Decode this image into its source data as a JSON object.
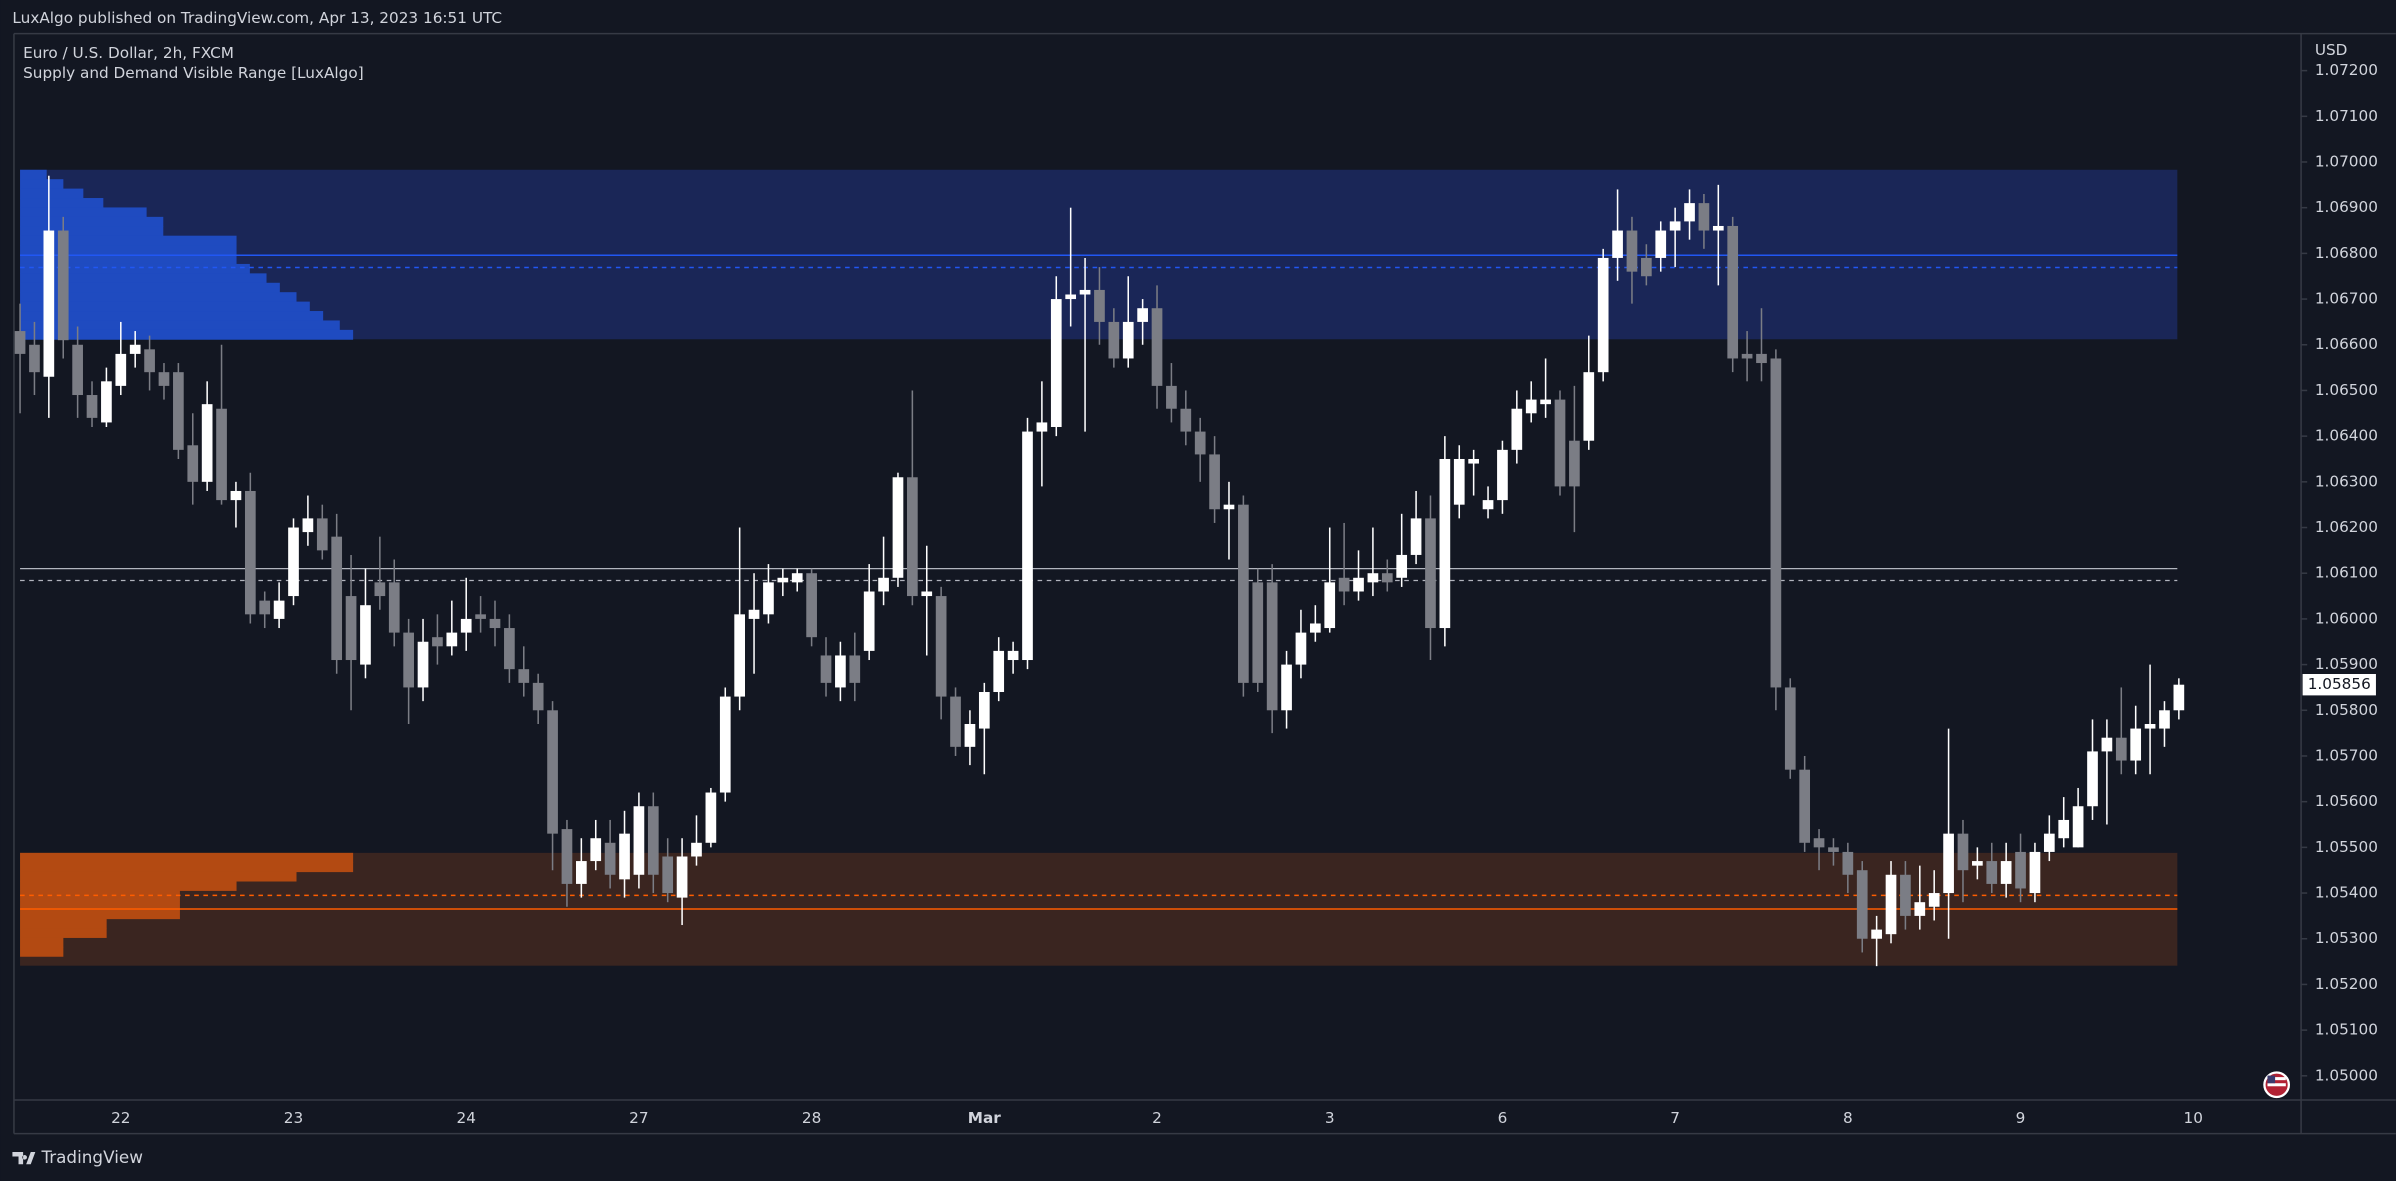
{
  "chart_data": {
    "type": "candlestick",
    "header": "LuxAlgo published on TradingView.com, Apr 13, 2023 16:51 UTC",
    "title": "Euro / U.S. Dollar, 2h, FXCM",
    "subtitle": "Supply and Demand Visible Range [LuxAlgo]",
    "axis_unit": "USD",
    "footer": "TradingView",
    "up_color": "#ffffff",
    "down_color": "#7b7d85",
    "grid": false,
    "ylim": [
      1.04947,
      1.07281
    ],
    "yticks": [
      {
        "value": 1.05,
        "label": "1.05000"
      },
      {
        "value": 1.051,
        "label": "1.05100"
      },
      {
        "value": 1.052,
        "label": "1.05200"
      },
      {
        "value": 1.053,
        "label": "1.05300"
      },
      {
        "value": 1.054,
        "label": "1.05400"
      },
      {
        "value": 1.055,
        "label": "1.05500"
      },
      {
        "value": 1.056,
        "label": "1.05600"
      },
      {
        "value": 1.057,
        "label": "1.05700"
      },
      {
        "value": 1.058,
        "label": "1.05800"
      },
      {
        "value": 1.059,
        "label": "1.05900"
      },
      {
        "value": 1.06,
        "label": "1.06000"
      },
      {
        "value": 1.061,
        "label": "1.06100"
      },
      {
        "value": 1.062,
        "label": "1.06200"
      },
      {
        "value": 1.063,
        "label": "1.06300"
      },
      {
        "value": 1.064,
        "label": "1.06400"
      },
      {
        "value": 1.065,
        "label": "1.06500"
      },
      {
        "value": 1.066,
        "label": "1.06600"
      },
      {
        "value": 1.067,
        "label": "1.06700"
      },
      {
        "value": 1.068,
        "label": "1.06800"
      },
      {
        "value": 1.069,
        "label": "1.06900"
      },
      {
        "value": 1.07,
        "label": "1.07000"
      },
      {
        "value": 1.071,
        "label": "1.07100"
      },
      {
        "value": 1.072,
        "label": "1.07200"
      }
    ],
    "last_price_label": "1.05856",
    "categories": [
      null,
      null,
      null,
      null,
      null,
      null,
      null,
      "22",
      null,
      null,
      null,
      null,
      null,
      null,
      null,
      null,
      null,
      null,
      null,
      "23",
      null,
      null,
      null,
      null,
      null,
      null,
      null,
      null,
      null,
      null,
      null,
      "24",
      null,
      null,
      null,
      null,
      null,
      null,
      null,
      null,
      null,
      null,
      null,
      "27",
      null,
      null,
      null,
      null,
      null,
      null,
      null,
      null,
      null,
      null,
      null,
      "28",
      null,
      null,
      null,
      null,
      null,
      null,
      null,
      null,
      null,
      null,
      null,
      "Mar",
      null,
      null,
      null,
      null,
      null,
      null,
      null,
      null,
      null,
      null,
      null,
      "2",
      null,
      null,
      null,
      null,
      null,
      null,
      null,
      null,
      null,
      null,
      null,
      "3",
      null,
      null,
      null,
      null,
      null,
      null,
      null,
      null,
      null,
      null,
      null,
      "6",
      null,
      null,
      null,
      null,
      null,
      null,
      null,
      null,
      null,
      null,
      null,
      "7",
      null,
      null,
      null,
      null,
      null,
      null,
      null,
      null,
      null,
      null,
      null,
      "8",
      null,
      null,
      null,
      null,
      null,
      null,
      null,
      null,
      null,
      null,
      null,
      "9",
      null,
      null,
      null,
      null,
      null,
      null,
      null,
      null,
      null,
      null,
      null,
      "10"
    ],
    "ohlc": [
      [
        1.0663,
        1.0669,
        1.0645,
        1.0658
      ],
      [
        1.066,
        1.0665,
        1.0649,
        1.0654
      ],
      [
        1.0653,
        1.0697,
        1.0644,
        1.0685
      ],
      [
        1.0685,
        1.0688,
        1.0657,
        1.0661
      ],
      [
        1.066,
        1.0664,
        1.0644,
        1.0649
      ],
      [
        1.0649,
        1.0652,
        1.0642,
        1.0644
      ],
      [
        1.0643,
        1.0655,
        1.0642,
        1.0652
      ],
      [
        1.0651,
        1.0665,
        1.0649,
        1.0658
      ],
      [
        1.0658,
        1.0663,
        1.0655,
        1.066
      ],
      [
        1.0659,
        1.0662,
        1.065,
        1.0654
      ],
      [
        1.0654,
        1.0656,
        1.0648,
        1.0651
      ],
      [
        1.0654,
        1.0656,
        1.0635,
        1.0637
      ],
      [
        1.0638,
        1.0645,
        1.0625,
        1.063
      ],
      [
        1.063,
        1.0652,
        1.0628,
        1.0647
      ],
      [
        1.0646,
        1.066,
        1.0625,
        1.0626
      ],
      [
        1.0626,
        1.063,
        1.062,
        1.0628
      ],
      [
        1.0628,
        1.0632,
        1.0599,
        1.0601
      ],
      [
        1.0604,
        1.0606,
        1.0598,
        1.0601
      ],
      [
        1.06,
        1.0608,
        1.0598,
        1.0604
      ],
      [
        1.0605,
        1.0622,
        1.0603,
        1.062
      ],
      [
        1.0619,
        1.0627,
        1.0616,
        1.0622
      ],
      [
        1.0622,
        1.0625,
        1.0613,
        1.0615
      ],
      [
        1.0618,
        1.0623,
        1.0588,
        1.0591
      ],
      [
        1.0605,
        1.0614,
        1.058,
        1.0591
      ],
      [
        1.059,
        1.0611,
        1.0587,
        1.0603
      ],
      [
        1.0608,
        1.0618,
        1.0602,
        1.0605
      ],
      [
        1.0608,
        1.0613,
        1.0594,
        1.0597
      ],
      [
        1.0597,
        1.06,
        1.0577,
        1.0585
      ],
      [
        1.0585,
        1.06,
        1.0582,
        1.0595
      ],
      [
        1.0596,
        1.0601,
        1.059,
        1.0594
      ],
      [
        1.0594,
        1.0604,
        1.0592,
        1.0597
      ],
      [
        1.0597,
        1.0609,
        1.0593,
        1.06
      ],
      [
        1.0601,
        1.0605,
        1.0597,
        1.06
      ],
      [
        1.06,
        1.0604,
        1.0594,
        1.0598
      ],
      [
        1.0598,
        1.0601,
        1.0586,
        1.0589
      ],
      [
        1.0589,
        1.0594,
        1.0583,
        1.0586
      ],
      [
        1.0586,
        1.0588,
        1.0577,
        1.058
      ],
      [
        1.058,
        1.0582,
        1.0545,
        1.0553
      ],
      [
        1.0554,
        1.0556,
        1.0537,
        1.0542
      ],
      [
        1.0542,
        1.0552,
        1.0539,
        1.0547
      ],
      [
        1.0547,
        1.0556,
        1.0545,
        1.0552
      ],
      [
        1.0551,
        1.0556,
        1.0541,
        1.0544
      ],
      [
        1.0543,
        1.0558,
        1.0539,
        1.0553
      ],
      [
        1.0544,
        1.0562,
        1.0541,
        1.0559
      ],
      [
        1.0559,
        1.0562,
        1.054,
        1.0544
      ],
      [
        1.0548,
        1.0552,
        1.0538,
        1.054
      ],
      [
        1.0539,
        1.0552,
        1.0533,
        1.0548
      ],
      [
        1.0548,
        1.0557,
        1.0546,
        1.0551
      ],
      [
        1.0551,
        1.0563,
        1.055,
        1.0562
      ],
      [
        1.0562,
        1.0585,
        1.056,
        1.0583
      ],
      [
        1.0583,
        1.062,
        1.058,
        1.0601
      ],
      [
        1.06,
        1.061,
        1.0588,
        1.0602
      ],
      [
        1.0601,
        1.0612,
        1.0599,
        1.0608
      ],
      [
        1.0608,
        1.0611,
        1.0605,
        1.0609
      ],
      [
        1.0608,
        1.0611,
        1.0606,
        1.061
      ],
      [
        1.061,
        1.0611,
        1.0594,
        1.0596
      ],
      [
        1.0592,
        1.0596,
        1.0583,
        1.0586
      ],
      [
        1.0585,
        1.0595,
        1.0582,
        1.0592
      ],
      [
        1.0592,
        1.0597,
        1.0582,
        1.0586
      ],
      [
        1.0593,
        1.0612,
        1.0591,
        1.0606
      ],
      [
        1.0606,
        1.0618,
        1.0603,
        1.0609
      ],
      [
        1.0609,
        1.0632,
        1.0607,
        1.0631
      ],
      [
        1.0631,
        1.065,
        1.0603,
        1.0605
      ],
      [
        1.0605,
        1.0616,
        1.0592,
        1.0606
      ],
      [
        1.0605,
        1.0607,
        1.0578,
        1.0583
      ],
      [
        1.0583,
        1.0585,
        1.057,
        1.0572
      ],
      [
        1.0572,
        1.058,
        1.0568,
        1.0577
      ],
      [
        1.0576,
        1.0586,
        1.0566,
        1.0584
      ],
      [
        1.0584,
        1.0596,
        1.0582,
        1.0593
      ],
      [
        1.0591,
        1.0595,
        1.0588,
        1.0593
      ],
      [
        1.0591,
        1.0644,
        1.0589,
        1.0641
      ],
      [
        1.0641,
        1.0652,
        1.0629,
        1.0643
      ],
      [
        1.0642,
        1.0675,
        1.064,
        1.067
      ],
      [
        1.067,
        1.069,
        1.0664,
        1.0671
      ],
      [
        1.0671,
        1.0679,
        1.0641,
        1.0672
      ],
      [
        1.0672,
        1.0677,
        1.066,
        1.0665
      ],
      [
        1.0665,
        1.0668,
        1.0655,
        1.0657
      ],
      [
        1.0657,
        1.0675,
        1.0655,
        1.0665
      ],
      [
        1.0665,
        1.067,
        1.066,
        1.0668
      ],
      [
        1.0668,
        1.0673,
        1.0646,
        1.0651
      ],
      [
        1.0651,
        1.0656,
        1.0643,
        1.0646
      ],
      [
        1.0646,
        1.065,
        1.0638,
        1.0641
      ],
      [
        1.0641,
        1.0644,
        1.063,
        1.0636
      ],
      [
        1.0636,
        1.064,
        1.0621,
        1.0624
      ],
      [
        1.0624,
        1.063,
        1.0613,
        1.0625
      ],
      [
        1.0625,
        1.0627,
        1.0583,
        1.0586
      ],
      [
        1.0608,
        1.0611,
        1.0584,
        1.0586
      ],
      [
        1.0608,
        1.0612,
        1.0575,
        1.058
      ],
      [
        1.058,
        1.0593,
        1.0576,
        1.059
      ],
      [
        1.059,
        1.0602,
        1.0587,
        1.0597
      ],
      [
        1.0597,
        1.0603,
        1.0595,
        1.0599
      ],
      [
        1.0598,
        1.062,
        1.0597,
        1.0608
      ],
      [
        1.0609,
        1.0621,
        1.0603,
        1.0606
      ],
      [
        1.0606,
        1.0615,
        1.0604,
        1.0609
      ],
      [
        1.0608,
        1.062,
        1.0605,
        1.061
      ],
      [
        1.061,
        1.0613,
        1.0606,
        1.0608
      ],
      [
        1.0609,
        1.0623,
        1.0607,
        1.0614
      ],
      [
        1.0614,
        1.0628,
        1.0612,
        1.0622
      ],
      [
        1.0622,
        1.0627,
        1.0591,
        1.0598
      ],
      [
        1.0598,
        1.064,
        1.0594,
        1.0635
      ],
      [
        1.0625,
        1.0638,
        1.0622,
        1.0635
      ],
      [
        1.0634,
        1.0637,
        1.0627,
        1.0635
      ],
      [
        1.0624,
        1.0629,
        1.0622,
        1.0626
      ],
      [
        1.0626,
        1.0639,
        1.0623,
        1.0637
      ],
      [
        1.0637,
        1.065,
        1.0634,
        1.0646
      ],
      [
        1.0645,
        1.0652,
        1.0643,
        1.0648
      ],
      [
        1.0647,
        1.0657,
        1.0644,
        1.0648
      ],
      [
        1.0648,
        1.065,
        1.0627,
        1.0629
      ],
      [
        1.0639,
        1.0651,
        1.0619,
        1.0629
      ],
      [
        1.0639,
        1.0662,
        1.0637,
        1.0654
      ],
      [
        1.0654,
        1.0681,
        1.0652,
        1.0679
      ],
      [
        1.0679,
        1.0694,
        1.0674,
        1.0685
      ],
      [
        1.0685,
        1.0688,
        1.0669,
        1.0676
      ],
      [
        1.0679,
        1.0682,
        1.0673,
        1.0675
      ],
      [
        1.0679,
        1.0687,
        1.0676,
        1.0685
      ],
      [
        1.0685,
        1.069,
        1.0677,
        1.0687
      ],
      [
        1.0687,
        1.0694,
        1.0683,
        1.0691
      ],
      [
        1.0691,
        1.0693,
        1.0681,
        1.0685
      ],
      [
        1.0685,
        1.0695,
        1.0673,
        1.0686
      ],
      [
        1.0686,
        1.0688,
        1.0654,
        1.0657
      ],
      [
        1.0658,
        1.0663,
        1.0652,
        1.0657
      ],
      [
        1.0658,
        1.0668,
        1.0652,
        1.0656
      ],
      [
        1.0657,
        1.0659,
        1.058,
        1.0585
      ],
      [
        1.0585,
        1.0587,
        1.0565,
        1.0567
      ],
      [
        1.0567,
        1.057,
        1.0549,
        1.0551
      ],
      [
        1.0552,
        1.0554,
        1.0545,
        1.055
      ],
      [
        1.055,
        1.0552,
        1.0546,
        1.0549
      ],
      [
        1.0549,
        1.0551,
        1.054,
        1.0544
      ],
      [
        1.0545,
        1.0547,
        1.0527,
        1.053
      ],
      [
        1.053,
        1.0535,
        1.0524,
        1.0532
      ],
      [
        1.0531,
        1.0547,
        1.0529,
        1.0544
      ],
      [
        1.0544,
        1.0547,
        1.0532,
        1.0535
      ],
      [
        1.0535,
        1.0546,
        1.0532,
        1.0538
      ],
      [
        1.0537,
        1.0545,
        1.0534,
        1.054
      ],
      [
        1.054,
        1.0576,
        1.053,
        1.0553
      ],
      [
        1.0553,
        1.0556,
        1.0538,
        1.0545
      ],
      [
        1.0546,
        1.055,
        1.0543,
        1.0547
      ],
      [
        1.0547,
        1.0551,
        1.054,
        1.0542
      ],
      [
        1.0542,
        1.0551,
        1.0539,
        1.0547
      ],
      [
        1.0549,
        1.0553,
        1.0538,
        1.0541
      ],
      [
        1.054,
        1.0551,
        1.0538,
        1.0549
      ],
      [
        1.0549,
        1.0557,
        1.0547,
        1.0553
      ],
      [
        1.0552,
        1.0561,
        1.055,
        1.0556
      ],
      [
        1.055,
        1.0563,
        1.055,
        1.0559
      ],
      [
        1.0559,
        1.0578,
        1.0556,
        1.0571
      ],
      [
        1.0571,
        1.0578,
        1.0555,
        1.0574
      ],
      [
        1.0574,
        1.0585,
        1.0566,
        1.0569
      ],
      [
        1.0569,
        1.0581,
        1.0566,
        1.0576
      ],
      [
        1.0576,
        1.059,
        1.0566,
        1.0577
      ],
      [
        1.0576,
        1.0582,
        1.0572,
        1.058
      ],
      [
        1.058,
        1.0587,
        1.0578,
        1.05856
      ],
      null
    ],
    "supply_zone": {
      "top": 1.06983,
      "bottom": 1.06612,
      "average": 1.06796,
      "weighted_average": 1.06769,
      "color": "#2157f3",
      "profile_color": "#1f4bc0",
      "fill": "#1a2657",
      "profile": [
        8,
        13,
        19,
        25,
        38,
        43,
        43,
        65,
        65,
        65,
        69,
        74,
        78,
        83,
        87,
        91,
        96,
        100
      ]
    },
    "demand_zone": {
      "top": 1.05488,
      "bottom": 1.05241,
      "average": 1.05365,
      "weighted_average": 1.05395,
      "color": "#ff5d00",
      "profile_color": "#b34a12",
      "fill": "#3a2520",
      "profile": [
        100,
        100,
        83,
        65,
        48,
        48,
        48,
        26,
        26,
        13,
        13,
        0
      ]
    },
    "equilibrium": {
      "average": 1.0611,
      "weighted_average": 1.06084,
      "color": "#b2b5be"
    }
  }
}
